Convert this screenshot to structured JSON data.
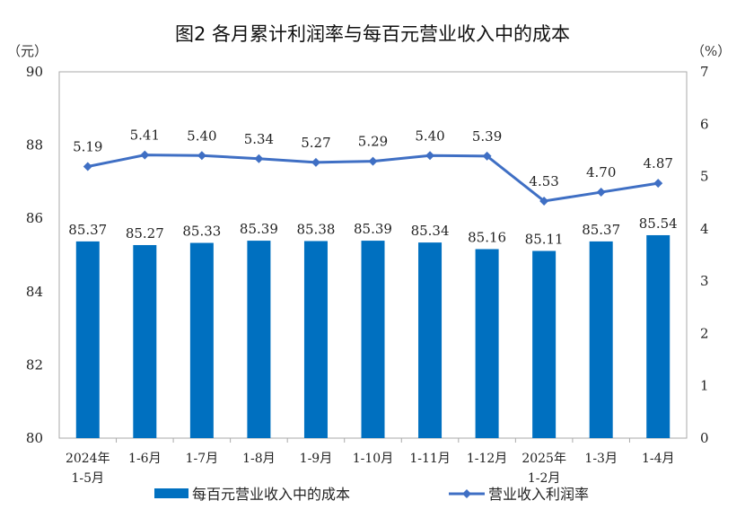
{
  "chart_data": {
    "type": "bar+line",
    "title": "图2  各月累计利润率与每百元营业收入中的成本",
    "categories": [
      "2024年\n1-5月",
      "1-6月",
      "1-7月",
      "1-8月",
      "1-9月",
      "1-10月",
      "1-11月",
      "1-12月",
      "2025年\n1-2月",
      "1-3月",
      "1-4月"
    ],
    "left_axis": {
      "unit": "（元）",
      "range": [
        80,
        90
      ],
      "ticks": [
        80,
        82,
        84,
        86,
        88,
        90
      ]
    },
    "right_axis": {
      "unit": "（%）",
      "range": [
        0,
        7
      ],
      "ticks": [
        0,
        1,
        2,
        3,
        4,
        5,
        6,
        7
      ]
    },
    "series": [
      {
        "name": "每百元营业收入中的成本",
        "type": "bar",
        "axis": "left",
        "color": "#0070C0",
        "values": [
          85.37,
          85.27,
          85.33,
          85.39,
          85.38,
          85.39,
          85.34,
          85.16,
          85.11,
          85.37,
          85.54
        ]
      },
      {
        "name": "营业收入利润率",
        "type": "line",
        "axis": "right",
        "color": "#3F6FC4",
        "marker": "diamond",
        "values": [
          5.19,
          5.41,
          5.4,
          5.34,
          5.27,
          5.29,
          5.4,
          5.39,
          4.53,
          4.7,
          4.87
        ]
      }
    ],
    "data_labels": true,
    "grid": false,
    "legend": "bottom"
  }
}
